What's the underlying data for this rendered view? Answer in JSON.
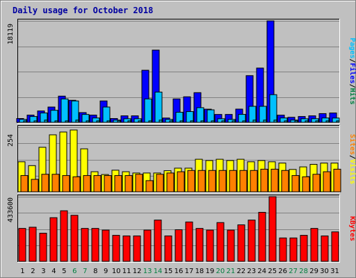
{
  "chart_data": {
    "type": "bar",
    "title": "Daily usage for October 2018",
    "categories": [
      "1",
      "2",
      "3",
      "4",
      "5",
      "6",
      "7",
      "8",
      "9",
      "10",
      "11",
      "12",
      "13",
      "14",
      "15",
      "16",
      "17",
      "18",
      "19",
      "20",
      "21",
      "22",
      "23",
      "24",
      "25",
      "26",
      "27",
      "28",
      "29",
      "30",
      "31"
    ],
    "weekend_days": [
      "6",
      "7",
      "13",
      "14",
      "20",
      "21",
      "27",
      "28"
    ],
    "panels": [
      {
        "id": "hits",
        "max_label": "18119",
        "ymax": 18119,
        "side_label": [
          "Pages",
          "/",
          "Files",
          "/",
          "Hits"
        ],
        "side_colors": [
          "#00c0ff",
          "#000000",
          "#0000ff",
          "#000000",
          "#008040"
        ],
        "series": [
          {
            "name": "Hits",
            "color": "#0000ff",
            "values": [
              680,
              1290,
              2030,
              2730,
              4680,
              3940,
              1740,
              1290,
              3820,
              680,
              1160,
              1160,
              9300,
              12900,
              770,
              4180,
              4560,
              5300,
              2350,
              1410,
              1410,
              2360,
              8340,
              9690,
              18119,
              1280,
              900,
              1040,
              1160,
              1560,
              1670
            ]
          },
          {
            "name": "Files",
            "color": "#00c0ff",
            "values": [
              520,
              1040,
              1670,
              2150,
              4180,
              3820,
              1410,
              780,
              2730,
              400,
              640,
              640,
              4180,
              5400,
              520,
              1800,
              1920,
              2620,
              2230,
              640,
              520,
              1420,
              2860,
              2860,
              4940,
              780,
              400,
              640,
              650,
              780,
              770
            ]
          },
          {
            "name": "Pages",
            "color": "#00a0b0",
            "values": [
              260,
              260,
              400,
              260,
              260,
              400,
              260,
              260,
              260,
              260,
              260,
              260,
              260,
              400,
              260,
              260,
              260,
              260,
              260,
              260,
              260,
              260,
              400,
              400,
              400,
              260,
              260,
              260,
              260,
              260,
              260
            ]
          }
        ]
      },
      {
        "id": "visits",
        "max_label": "254",
        "ymax": 254,
        "side_label": [
          "Sites",
          "/",
          "Visits"
        ],
        "side_colors": [
          "#ff8000",
          "#000000",
          "#ffff00"
        ],
        "series": [
          {
            "name": "Visits",
            "color": "#ffff00",
            "values": [
              118,
              103,
              175,
              224,
              235,
              243,
              169,
              79,
              68,
              85,
              79,
              74,
              74,
              74,
              83,
              93,
              93,
              128,
              123,
              128,
              123,
              128,
              118,
              123,
              118,
              113,
              88,
              98,
              108,
              113,
              113
            ]
          },
          {
            "name": "Sites",
            "color": "#ff8000",
            "values": [
              64,
              49,
              69,
              69,
              64,
              59,
              64,
              64,
              64,
              64,
              64,
              69,
              44,
              69,
              74,
              79,
              84,
              84,
              84,
              84,
              84,
              84,
              84,
              89,
              89,
              84,
              64,
              59,
              69,
              79,
              89
            ]
          }
        ]
      },
      {
        "id": "kbytes",
        "max_label": "433600",
        "ymax": 433600,
        "side_label": [
          "KBytes"
        ],
        "side_colors": [
          "#ff0000"
        ],
        "series": [
          {
            "name": "KBytes",
            "color": "#ff0000",
            "values": [
              220800,
              228800,
              188800,
              292800,
              339200,
              308800,
              220800,
              220800,
              209600,
              174400,
              170400,
              170400,
              209600,
              276800,
              170400,
              212000,
              264000,
              220800,
              209600,
              260000,
              209600,
              244800,
              276800,
              328800,
              433600,
              156800,
              156800,
              174400,
              220800,
              170400,
              197600
            ]
          }
        ]
      }
    ]
  }
}
